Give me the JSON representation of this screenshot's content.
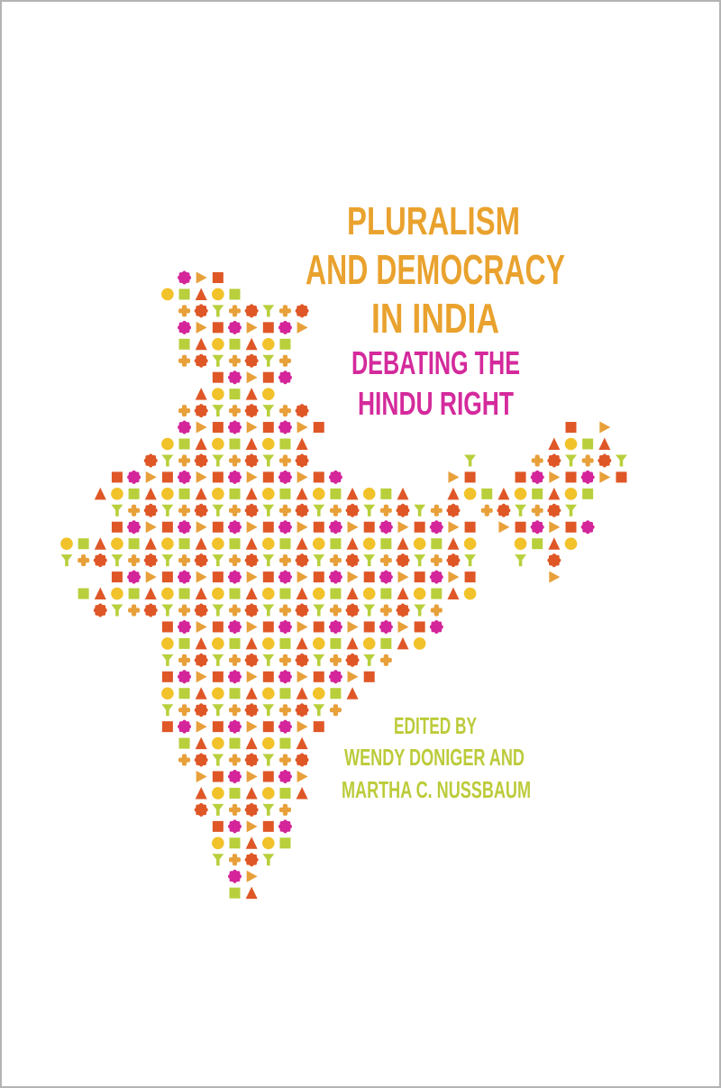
{
  "cover": {
    "title_lines": [
      "PLURALISM",
      "AND DEMOCRACY",
      "IN INDIA"
    ],
    "subtitle_lines": [
      "DEBATING THE",
      "HINDU RIGHT"
    ],
    "editor_lines": [
      "EDITED BY",
      "WENDY DONIGER AND",
      "MARTHA C. NUSSBAUM"
    ],
    "colors": {
      "title": "#e9a22e",
      "subtitle": "#d42a9c",
      "editors": "#bccb3a",
      "border": "#b4b4b4"
    },
    "map": {
      "description_icon": "india-map-mosaic",
      "shape_colors": {
        "magenta": "#d4259a",
        "orange": "#e8a03a",
        "red": "#df5727",
        "yellow": "#f2c22a",
        "lime": "#b9cf3c"
      }
    }
  }
}
